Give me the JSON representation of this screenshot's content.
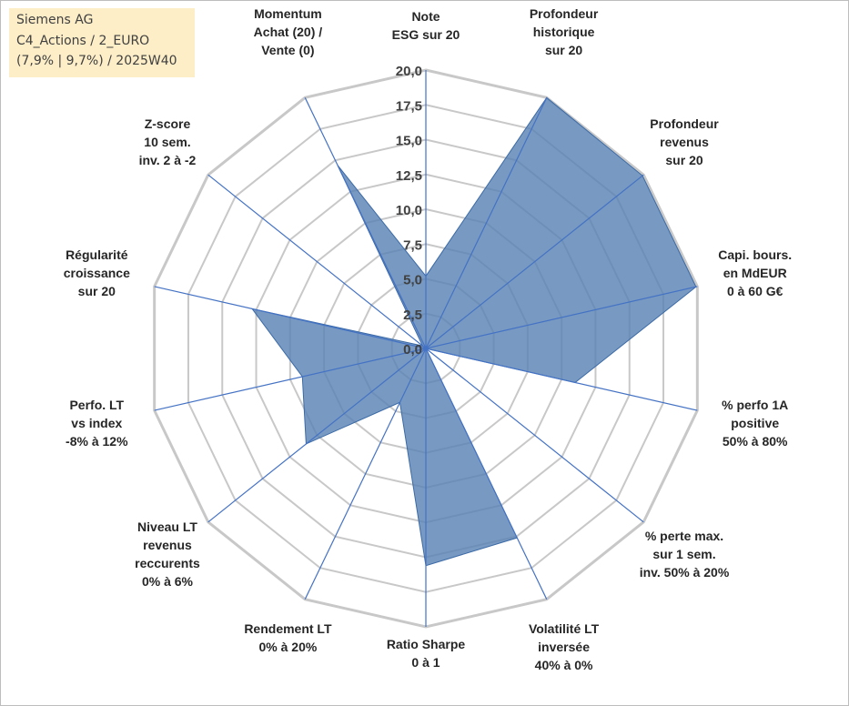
{
  "info_box": {
    "line1": "Siemens AG",
    "line2": "C4_Actions / 2_EURO",
    "line3": "(7,9% | 9,7%) / 2025W40"
  },
  "chart_data": {
    "type": "radar",
    "rmin": 0,
    "rmax": 20,
    "tick_step": 2.5,
    "grid": true,
    "tick_labels": [
      "0,0",
      "2,5",
      "5,0",
      "7,5",
      "10,0",
      "12,5",
      "15,0",
      "17,5",
      "20,0"
    ],
    "categories": [
      [
        "Note",
        "ESG sur 20"
      ],
      [
        "Profondeur",
        "historique",
        "sur 20"
      ],
      [
        "Profondeur",
        "revenus",
        "sur 20"
      ],
      [
        "Capi. bours.",
        "en MdEUR",
        "0 à 60 G€"
      ],
      [
        "% perfo 1A",
        "positive",
        "50% à 80%"
      ],
      [
        "% perte max.",
        "sur 1 sem.",
        "inv. 50% à 20%"
      ],
      [
        "Volatilité LT",
        "inversée",
        "40% à 0%"
      ],
      [
        "Ratio Sharpe",
        "0 à 1"
      ],
      [
        "Rendement LT",
        "0% à 20%"
      ],
      [
        "Niveau LT",
        "revenus",
        "reccurents",
        "0% à 6%"
      ],
      [
        "Perfo. LT",
        "vs index",
        "-8% à 12%"
      ],
      [
        "Régularité",
        "croissance",
        "sur 20"
      ],
      [
        "Z-score",
        "10 sem.",
        "inv. 2 à -2"
      ],
      [
        "Momentum",
        "Achat (20) /",
        "Vente (0)"
      ]
    ],
    "series": [
      {
        "values": [
          5.2,
          20.0,
          19.9,
          19.9,
          11.0,
          0.0,
          15.1,
          15.6,
          4.3,
          11.0,
          9.1,
          12.8,
          0.3,
          14.6
        ],
        "fill": "#5a84b5",
        "stroke": "#3b6aa6"
      }
    ],
    "colors": {
      "grid": "#c8c8c8",
      "spoke": "#4472c4"
    }
  }
}
